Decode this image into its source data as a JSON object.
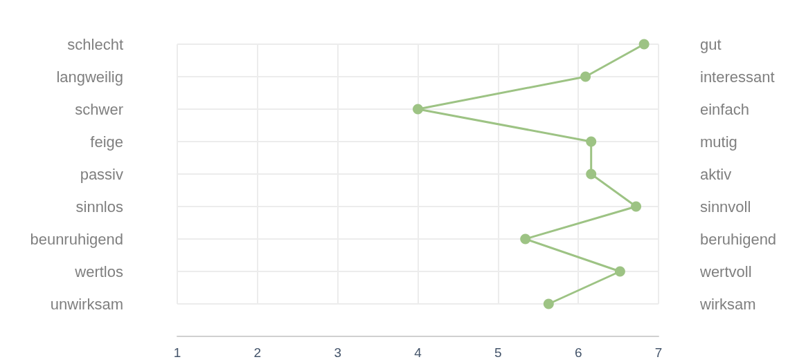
{
  "chart_data": {
    "type": "line",
    "orientation": "horizontal",
    "categories": [
      "schlecht",
      "langweilig",
      "schwer",
      "feige",
      "passiv",
      "sinnlos",
      "beunruhigend",
      "wertlos",
      "unwirksam"
    ],
    "y2_categories": [
      "gut",
      "interessant",
      "einfach",
      "mutig",
      "aktiv",
      "sinnvoll",
      "beruhigend",
      "wertvoll",
      "wirksam"
    ],
    "values": [
      6.82,
      6.09,
      4.0,
      6.16,
      6.16,
      6.72,
      5.34,
      6.52,
      5.63
    ],
    "color": "#9dc384",
    "xlim": [
      1,
      7
    ],
    "xticks": [
      1,
      2,
      3,
      4,
      5,
      6,
      7
    ],
    "grid": true,
    "marker": "circle",
    "line_style": "solid"
  }
}
